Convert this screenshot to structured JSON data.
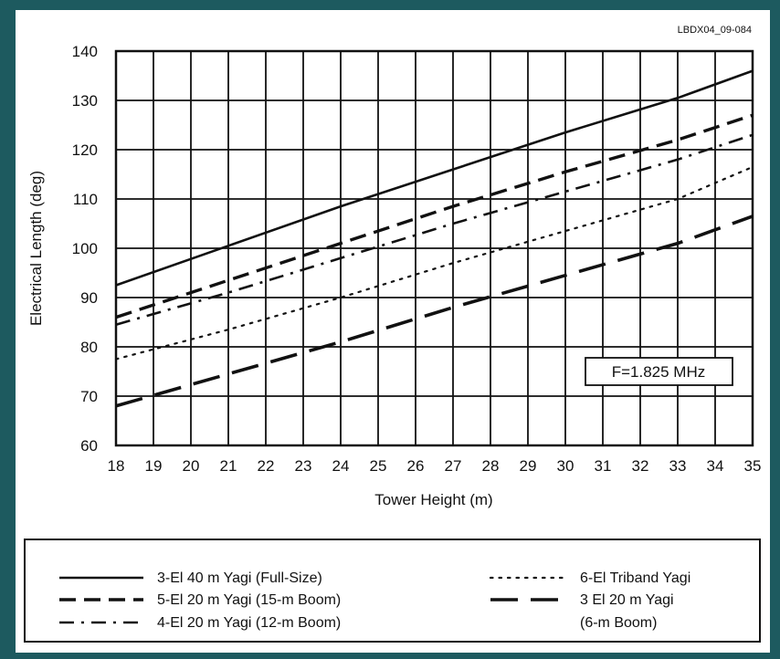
{
  "chart_data": {
    "type": "line",
    "figure_id": "LBDX04_09-084",
    "xlabel": "Tower Height (m)",
    "ylabel": "Electrical Length (deg)",
    "xlim": [
      18,
      35
    ],
    "ylim": [
      60,
      140
    ],
    "x_ticks": [
      "18",
      "19",
      "20",
      "21",
      "22",
      "23",
      "24",
      "25",
      "26",
      "27",
      "28",
      "29",
      "30",
      "31",
      "32",
      "33",
      "34",
      "35"
    ],
    "y_ticks": [
      "60",
      "70",
      "80",
      "90",
      "100",
      "110",
      "120",
      "130",
      "140"
    ],
    "grid": "on",
    "annotation": "F=1.825 MHz",
    "legend_position": "bottom",
    "series": [
      {
        "name": "3-El 40 m Yagi (Full-Size)",
        "style": "solid",
        "x": [
          18,
          21,
          24,
          27,
          30,
          33,
          35
        ],
        "y": [
          92.5,
          100.5,
          108.5,
          116,
          123.5,
          130.5,
          136
        ]
      },
      {
        "name": "5-El 20 m Yagi (15-m Boom)",
        "style": "dash",
        "x": [
          18,
          21,
          24,
          27,
          30,
          33,
          35
        ],
        "y": [
          86,
          93.5,
          101,
          108.5,
          115.5,
          122,
          127
        ]
      },
      {
        "name": "4-El 20 m Yagi (12-m Boom)",
        "style": "dashdot",
        "x": [
          18,
          21,
          24,
          27,
          30,
          33,
          35
        ],
        "y": [
          84.5,
          91,
          98,
          105,
          111.5,
          118,
          123
        ]
      },
      {
        "name": "6-El Triband Yagi",
        "style": "dot",
        "x": [
          18,
          21,
          24,
          27,
          30,
          33,
          35
        ],
        "y": [
          77.5,
          83.5,
          90,
          97,
          103.5,
          110,
          116.5
        ]
      },
      {
        "name": "3 El 20 m Yagi (6-m Boom)",
        "style": "longdash",
        "x": [
          18,
          21,
          24,
          27,
          30,
          33,
          35
        ],
        "y": [
          68,
          74.5,
          81,
          88,
          94.5,
          101,
          106.5
        ]
      }
    ]
  }
}
